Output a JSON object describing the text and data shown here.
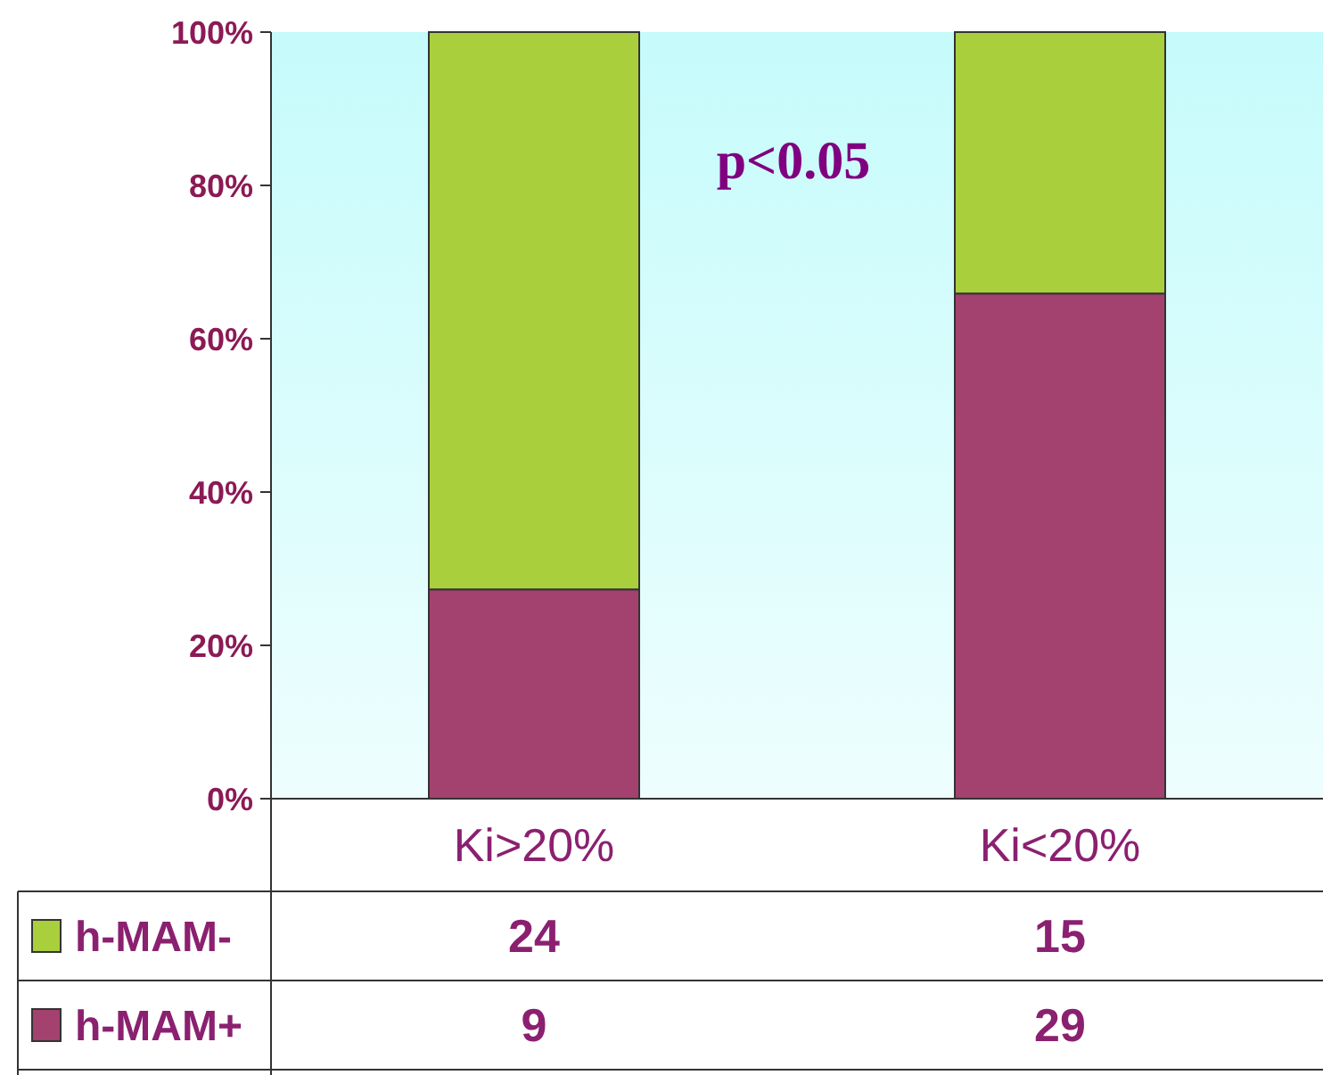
{
  "chart_data": [
    {
      "type": "bar",
      "stacked": true,
      "categories": [
        "Ki>20%",
        "Ki<20%"
      ],
      "series": [
        {
          "name": "h-MAM+",
          "color": "#a3416f",
          "values": [
            27.3,
            65.9
          ]
        },
        {
          "name": "h-MAM-",
          "color": "#a9cf3c",
          "values": [
            72.7,
            34.1
          ]
        }
      ],
      "ylim": [
        0,
        100
      ],
      "yticks": [
        {
          "value": 0,
          "label": "0%"
        },
        {
          "value": 20,
          "label": "20%"
        },
        {
          "value": 40,
          "label": "40%"
        },
        {
          "value": 60,
          "label": "60%"
        },
        {
          "value": 80,
          "label": "80%"
        },
        {
          "value": 100,
          "label": "100%"
        }
      ],
      "annotations": [
        "p<0.05"
      ],
      "legend": "bottom",
      "grid": false
    },
    {
      "type": "other",
      "annotations": [
        "24",
        "15",
        "9",
        "29"
      ]
    }
  ]
}
